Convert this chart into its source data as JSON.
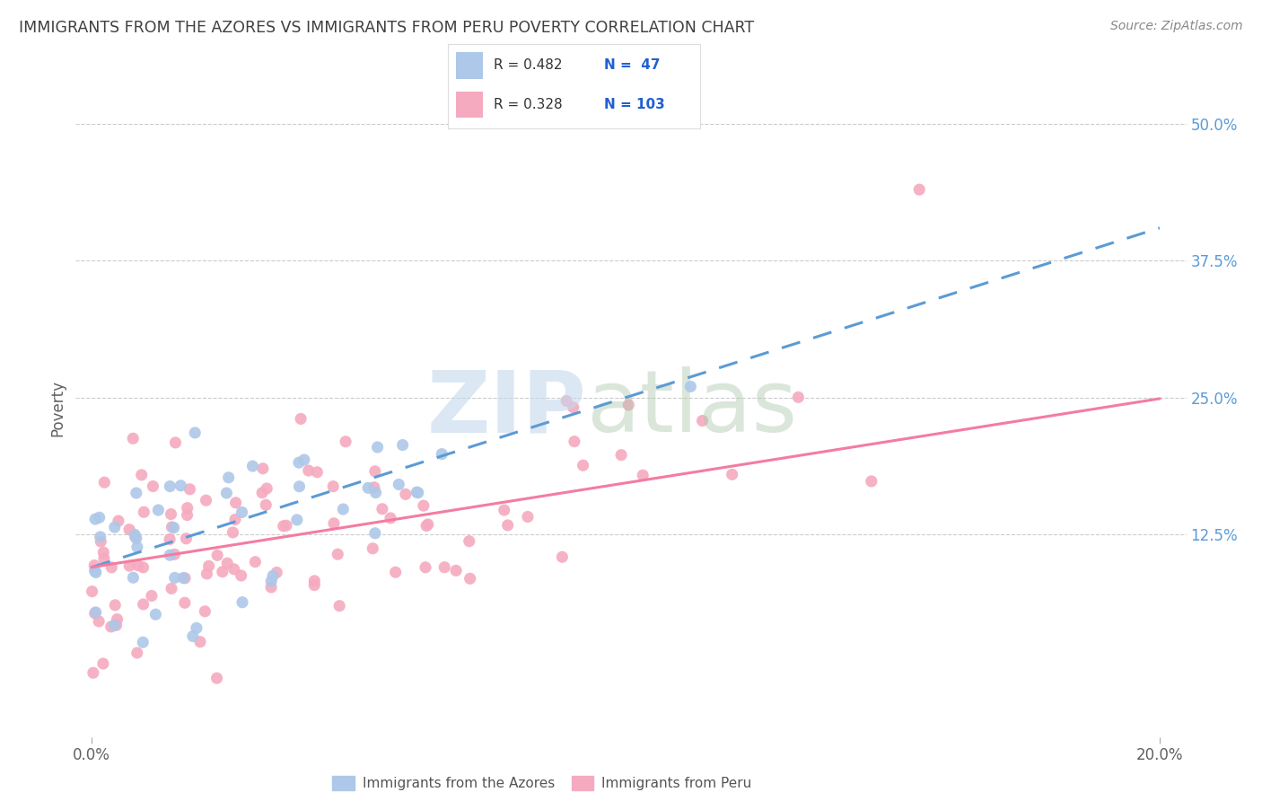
{
  "title": "IMMIGRANTS FROM THE AZORES VS IMMIGRANTS FROM PERU POVERTY CORRELATION CHART",
  "source": "Source: ZipAtlas.com",
  "ylabel_label": "Poverty",
  "xlim": [
    0.0,
    0.2
  ],
  "ylim": [
    -0.06,
    0.54
  ],
  "azores_R": 0.482,
  "azores_N": 47,
  "peru_R": 0.328,
  "peru_N": 103,
  "azores_color": "#adc8e8",
  "peru_color": "#f5aabf",
  "azores_line_color": "#5b9bd5",
  "peru_line_color": "#f47ca0",
  "ytick_color": "#5b9bd5",
  "legend_text_color": "#2060d0",
  "legend_R_color": "#333333",
  "background_color": "#ffffff",
  "grid_color": "#cccccc",
  "title_color": "#404040",
  "source_color": "#888888",
  "ylabel_color": "#606060",
  "xtick_color": "#606060",
  "azores_line_intercept": 0.095,
  "azores_line_slope": 1.55,
  "peru_line_intercept": 0.095,
  "peru_line_slope": 0.77
}
